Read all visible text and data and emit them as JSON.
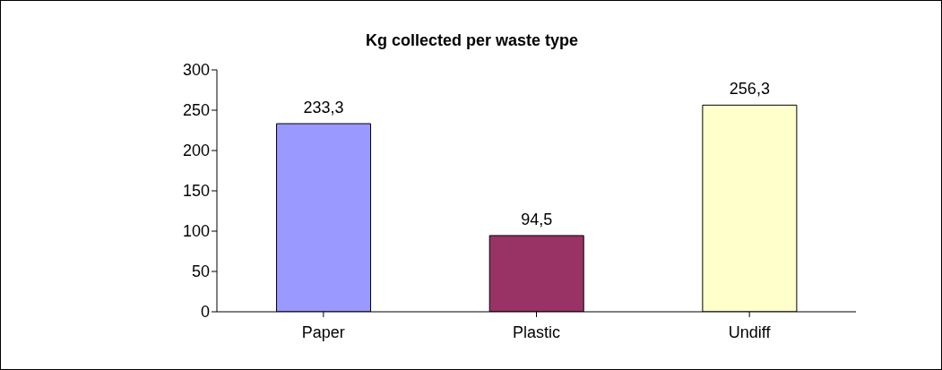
{
  "chart_data": {
    "type": "bar",
    "title": "Kg collected per waste type",
    "categories": [
      "Paper",
      "Plastic",
      "Undiff"
    ],
    "values": [
      233.3,
      94.5,
      256.3
    ],
    "colors": [
      "#9999ff",
      "#993366",
      "#ffffcc"
    ],
    "value_labels": [
      "233,3",
      "94,5",
      "256,3"
    ],
    "ylim": [
      0,
      300
    ],
    "yticks": [
      0,
      50,
      100,
      150,
      200,
      250,
      300
    ],
    "grid": false
  }
}
